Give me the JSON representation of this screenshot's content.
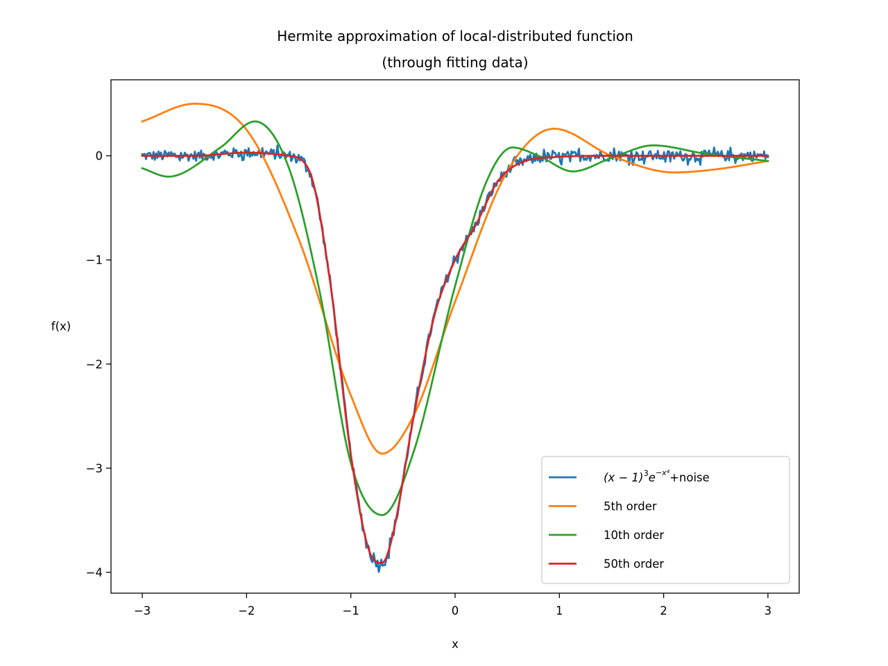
{
  "chart_data": {
    "type": "line",
    "title": [
      "Hermite approximation of local-distributed function",
      "(through fitting data)"
    ],
    "xlabel": "x",
    "ylabel": "f(x)",
    "xlim": [
      -3.3,
      3.3
    ],
    "ylim": [
      -4.2,
      0.73
    ],
    "xticks": [
      -3,
      -2,
      -1,
      0,
      1,
      2,
      3
    ],
    "xtick_labels": [
      "−3",
      "−2",
      "−1",
      "0",
      "1",
      "2",
      "3"
    ],
    "yticks": [
      -4,
      -3,
      -2,
      -1,
      0
    ],
    "ytick_labels": [
      "−4",
      "−3",
      "−2",
      "−1",
      "0"
    ],
    "grid": false,
    "legend_position": "lower-right",
    "series": [
      {
        "name": "(x−1)³e^(−x⁴)+noise",
        "legend_label": {
          "base": "(x − 1)",
          "sup1": "3",
          "e": "e",
          "sup2": "−x⁴",
          "suffix": "+noise"
        },
        "color": "#1f77b4",
        "noise_amplitude": 0.05,
        "x": [
          -3.0,
          -2.5,
          -2.0,
          -1.6,
          -1.4,
          -1.2,
          -1.0,
          -0.8,
          -0.7,
          -0.6,
          -0.4,
          -0.2,
          0.0,
          0.2,
          0.4,
          0.6,
          1.0,
          1.5,
          2.0,
          2.5,
          3.0
        ],
        "y": [
          0.0,
          0.0,
          0.03,
          0.0,
          -0.14,
          -1.2,
          -2.87,
          -3.85,
          -3.91,
          -3.65,
          -2.52,
          -1.54,
          -1.0,
          -0.66,
          -0.26,
          -0.08,
          -0.01,
          0.0,
          0.0,
          0.0,
          0.0
        ]
      },
      {
        "name": "5th order",
        "color": "#ff7f0e",
        "x": [
          -3.0,
          -2.5,
          -2.0,
          -1.5,
          -1.0,
          -0.7,
          -0.4,
          0.0,
          0.5,
          0.95,
          1.5,
          2.1,
          2.5,
          3.0
        ],
        "y": [
          0.33,
          0.5,
          0.25,
          -0.8,
          -2.3,
          -2.86,
          -2.5,
          -1.4,
          -0.15,
          0.26,
          0.0,
          -0.16,
          -0.13,
          -0.05
        ]
      },
      {
        "name": "10th order",
        "color": "#2ca02c",
        "x": [
          -3.0,
          -2.75,
          -2.25,
          -1.92,
          -1.6,
          -1.3,
          -1.0,
          -0.7,
          -0.4,
          0.0,
          0.3,
          0.55,
          0.8,
          1.13,
          1.5,
          1.9,
          2.4,
          3.0
        ],
        "y": [
          -0.12,
          -0.2,
          0.08,
          0.33,
          -0.1,
          -1.3,
          -2.95,
          -3.45,
          -2.85,
          -1.25,
          -0.25,
          0.08,
          0.0,
          -0.15,
          -0.02,
          0.1,
          0.02,
          -0.05
        ],
        "note": ""
      },
      {
        "name": "50th order",
        "color": "#d62728",
        "x": [
          -3.0,
          -2.5,
          -2.0,
          -1.6,
          -1.4,
          -1.2,
          -1.0,
          -0.8,
          -0.7,
          -0.6,
          -0.4,
          -0.2,
          0.0,
          0.2,
          0.4,
          0.6,
          1.0,
          1.5,
          2.0,
          2.5,
          3.0
        ],
        "y": [
          0.0,
          0.0,
          0.03,
          0.0,
          -0.14,
          -1.2,
          -2.87,
          -3.85,
          -3.91,
          -3.65,
          -2.52,
          -1.54,
          -1.0,
          -0.66,
          -0.26,
          -0.08,
          -0.01,
          0.0,
          0.0,
          0.0,
          0.0
        ]
      }
    ]
  }
}
